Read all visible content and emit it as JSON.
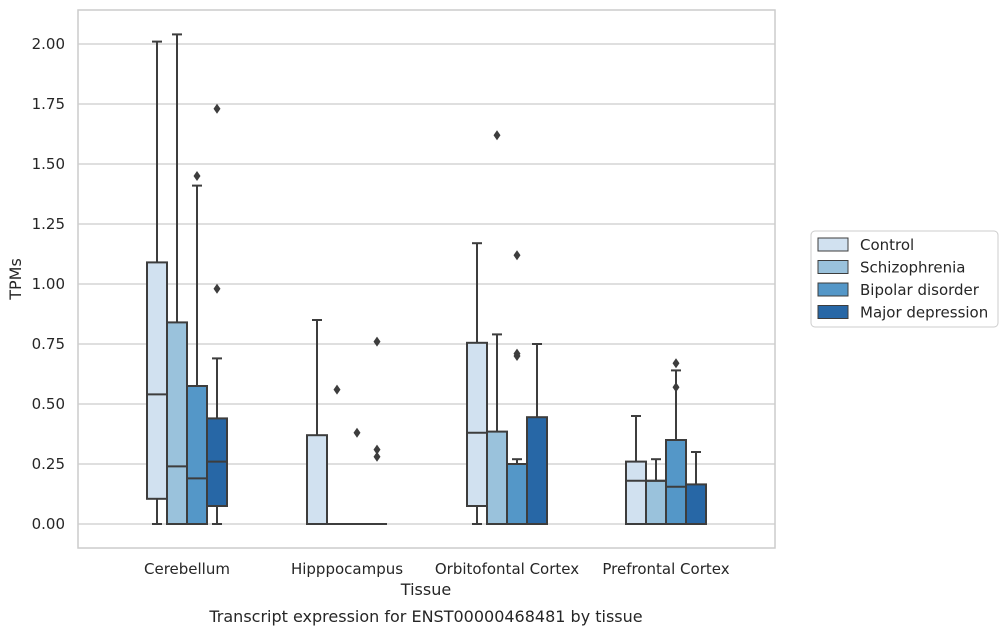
{
  "caption": "Transcript expression for ENST00000468481 by tissue",
  "chart_data": {
    "type": "box",
    "xlabel": "Tissue",
    "ylabel": "TPMs",
    "ylim": [
      -0.1,
      2.15
    ],
    "yticks": [
      0.0,
      0.25,
      0.5,
      0.75,
      1.0,
      1.25,
      1.5,
      1.75,
      2.0
    ],
    "ytick_labels": [
      "0.00",
      "0.25",
      "0.50",
      "0.75",
      "1.00",
      "1.25",
      "1.50",
      "1.75",
      "2.00"
    ],
    "grid": "horizontal",
    "legend_position": "right",
    "categories": [
      "Cerebellum",
      "Hipppocampus",
      "Orbitofontal Cortex",
      "Prefrontal Cortex"
    ],
    "series": [
      {
        "name": "Control",
        "color": "#d1e1f0",
        "boxes": [
          {
            "whisker_low": 0.0,
            "q1": 0.105,
            "median": 0.54,
            "q3": 1.09,
            "whisker_high": 2.01,
            "outliers": []
          },
          {
            "whisker_low": 0.0,
            "q1": 0.0,
            "median": 0.0,
            "q3": 0.37,
            "whisker_high": 0.85,
            "outliers": []
          },
          {
            "whisker_low": 0.0,
            "q1": 0.075,
            "median": 0.38,
            "q3": 0.755,
            "whisker_high": 1.17,
            "outliers": []
          },
          {
            "whisker_low": 0.0,
            "q1": 0.0,
            "median": 0.18,
            "q3": 0.26,
            "whisker_high": 0.45,
            "outliers": []
          }
        ]
      },
      {
        "name": "Schizophrenia",
        "color": "#9ac2dc",
        "boxes": [
          {
            "whisker_low": 0.0,
            "q1": 0.0,
            "median": 0.24,
            "q3": 0.84,
            "whisker_high": 2.04,
            "outliers": []
          },
          {
            "whisker_low": 0.0,
            "q1": 0.0,
            "median": 0.0,
            "q3": 0.0,
            "whisker_high": 0.0,
            "outliers": [
              0.56
            ]
          },
          {
            "whisker_low": 0.0,
            "q1": 0.0,
            "median": 0.0,
            "q3": 0.385,
            "whisker_high": 0.79,
            "outliers": [
              1.62
            ]
          },
          {
            "whisker_low": 0.0,
            "q1": 0.0,
            "median": 0.18,
            "q3": 0.18,
            "whisker_high": 0.27,
            "outliers": []
          }
        ]
      },
      {
        "name": "Bipolar disorder",
        "color": "#5497c8",
        "boxes": [
          {
            "whisker_low": 0.0,
            "q1": 0.0,
            "median": 0.19,
            "q3": 0.575,
            "whisker_high": 1.41,
            "outliers": [
              1.45
            ]
          },
          {
            "whisker_low": 0.0,
            "q1": 0.0,
            "median": 0.0,
            "q3": 0.0,
            "whisker_high": 0.0,
            "outliers": [
              0.38
            ]
          },
          {
            "whisker_low": 0.0,
            "q1": 0.0,
            "median": 0.0,
            "q3": 0.25,
            "whisker_high": 0.27,
            "outliers": [
              1.12,
              0.71,
              0.7
            ]
          },
          {
            "whisker_low": 0.0,
            "q1": 0.0,
            "median": 0.155,
            "q3": 0.35,
            "whisker_high": 0.64,
            "outliers": [
              0.67,
              0.57
            ]
          }
        ]
      },
      {
        "name": "Major depression",
        "color": "#2767a6",
        "boxes": [
          {
            "whisker_low": 0.0,
            "q1": 0.075,
            "median": 0.26,
            "q3": 0.44,
            "whisker_high": 0.69,
            "outliers": [
              1.73,
              0.98
            ]
          },
          {
            "whisker_low": 0.0,
            "q1": 0.0,
            "median": 0.0,
            "q3": 0.0,
            "whisker_high": 0.0,
            "outliers": [
              0.76,
              0.31,
              0.28
            ]
          },
          {
            "whisker_low": 0.0,
            "q1": 0.0,
            "median": 0.0,
            "q3": 0.445,
            "whisker_high": 0.75,
            "outliers": []
          },
          {
            "whisker_low": 0.0,
            "q1": 0.0,
            "median": 0.0,
            "q3": 0.165,
            "whisker_high": 0.3,
            "outliers": []
          }
        ]
      }
    ]
  }
}
